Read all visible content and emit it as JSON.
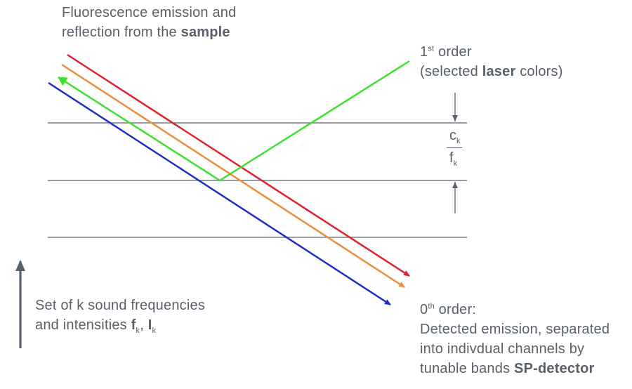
{
  "labels": {
    "emission_line1": "Fluorescence emission and",
    "emission_line2_prefix": "reflection from the ",
    "emission_line2_bold": "sample",
    "first_order_num": "1",
    "first_order_sup": "st",
    "first_order_rest": " order",
    "first_order_line2_prefix": "(selected ",
    "first_order_line2_bold": "laser",
    "first_order_line2_suffix": " colors)",
    "frac_c": "c",
    "frac_f": "f",
    "frac_sub": "k",
    "sound_line1": "Set of k sound frequencies",
    "sound_line2_prefix": "and intensities ",
    "sound_f": "f",
    "sound_f_sub": "k",
    "sound_sep": ", ",
    "sound_I": "I",
    "sound_I_sub": "k",
    "zero_order_num": "0",
    "zero_order_sup": "th",
    "zero_order_rest": " order:",
    "zero_line2": "Detected emission, separated",
    "zero_line3": "into indivdual channels by",
    "zero_line4_prefix": "tunable bands ",
    "zero_line4_bold": "SP-detector"
  },
  "colors": {
    "text": "#58606a",
    "grating_lines": "#58606a",
    "red": "#e0202e",
    "orange": "#ea8d3c",
    "blue": "#1e2ec8",
    "green": "#3fe02e"
  }
}
